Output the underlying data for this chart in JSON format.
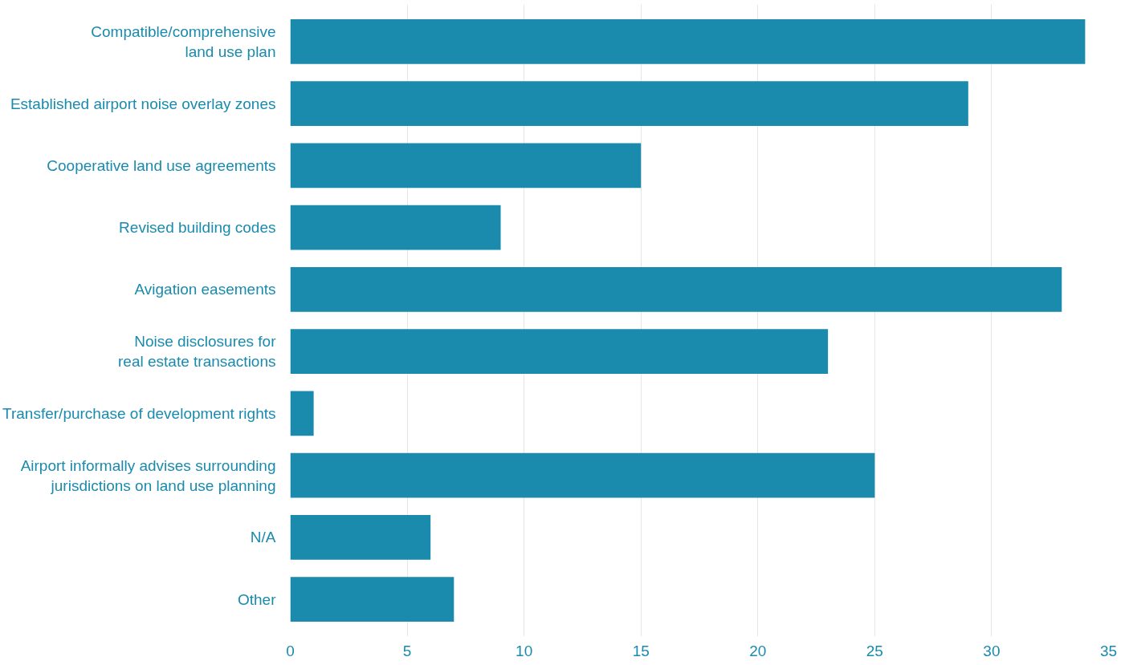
{
  "chart_data": {
    "type": "bar",
    "orientation": "horizontal",
    "categories": [
      "Compatible/comprehensive\nland use plan",
      "Established airport noise overlay zones",
      "Cooperative land use agreements",
      "Revised building codes",
      "Avigation easements",
      "Noise disclosures for\nreal estate transactions",
      "Transfer/purchase of development rights",
      "Airport informally advises surrounding\njurisdictions on land use planning",
      "N/A",
      "Other"
    ],
    "values": [
      34,
      29,
      15,
      9,
      33,
      23,
      1,
      25,
      6,
      7
    ],
    "color": "#1a8aad",
    "xlim": [
      0,
      35
    ],
    "xticks": [
      0,
      5,
      10,
      15,
      20,
      25,
      30,
      35
    ],
    "grid": "x"
  }
}
